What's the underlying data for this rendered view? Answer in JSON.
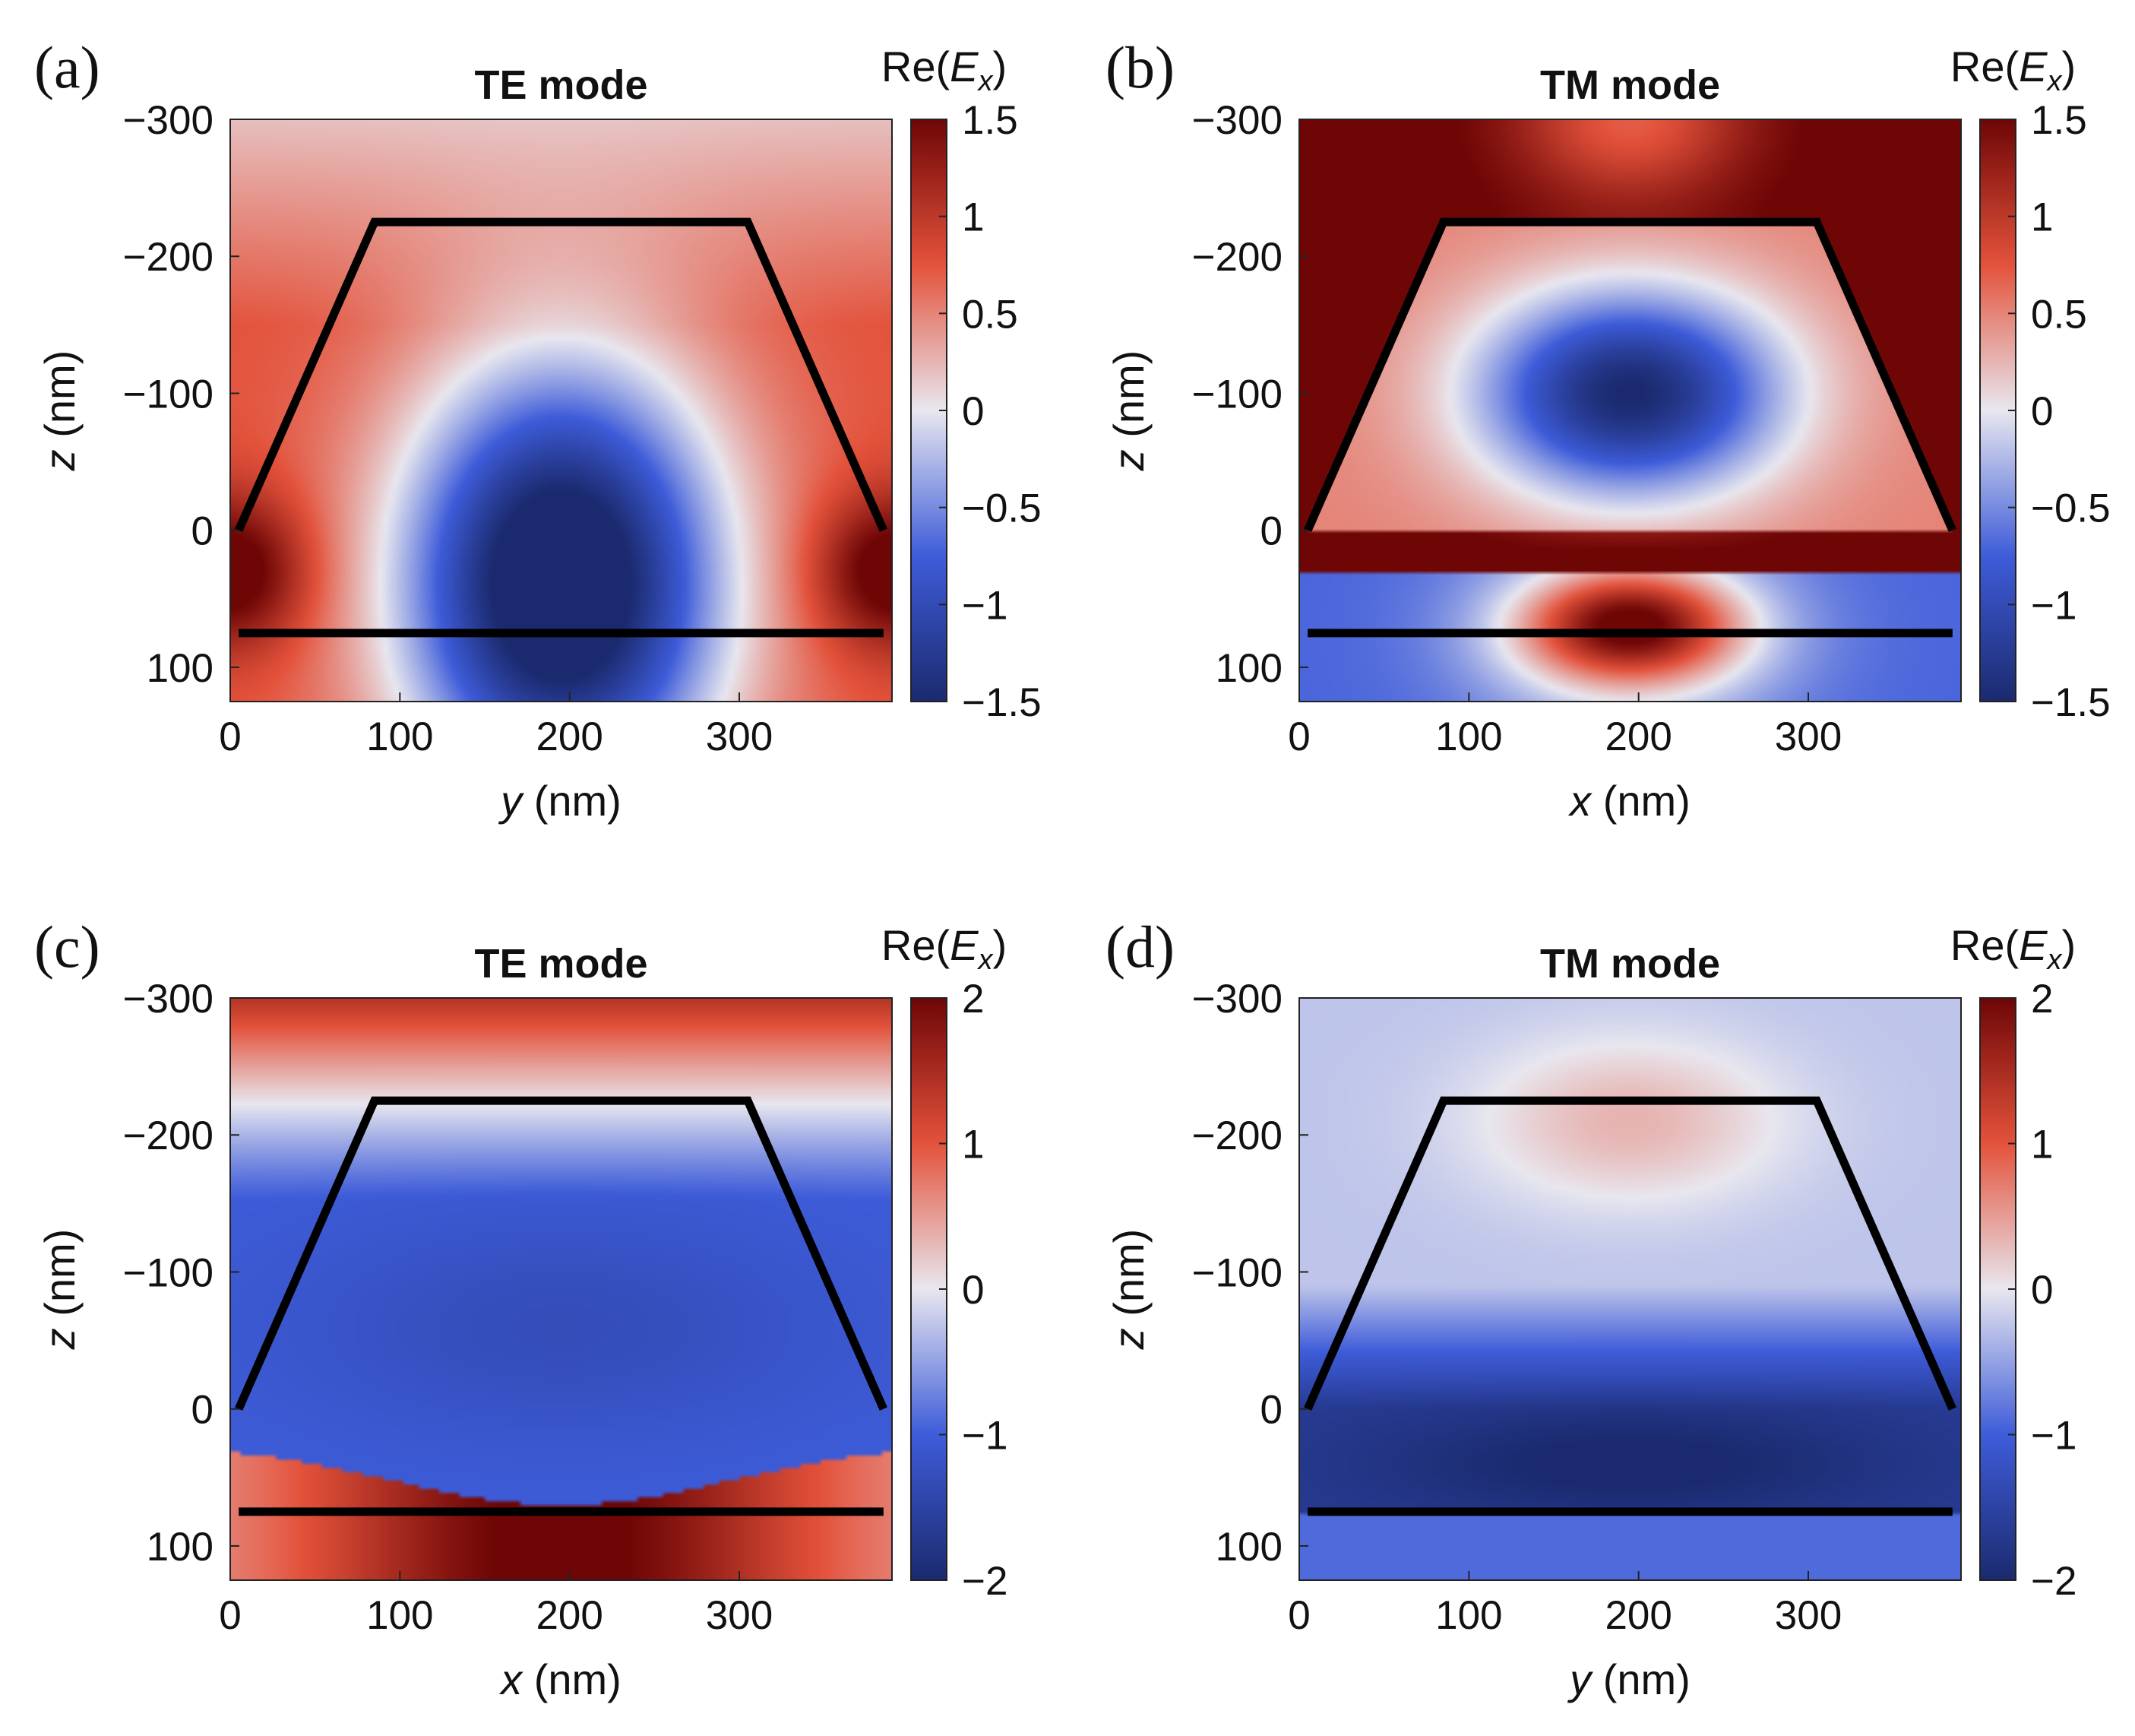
{
  "colormap": {
    "negative_end": "#1b2a6e",
    "mid_blue": "#3e5cd9",
    "center": "#e8e7ef",
    "mid_red": "#e3523b",
    "positive_end": "#6e0606"
  },
  "waveguide_outline_color": "#000000",
  "chart_data": [
    {
      "type": "heatmap",
      "panel": "(a)",
      "title": "TE mode",
      "colorbar_label": [
        "Re(",
        "E",
        "x",
        ")"
      ],
      "colorbar_ticks": [
        1.5,
        1,
        0.5,
        0,
        -0.5,
        -1,
        -1.5
      ],
      "colorbar_tick_labels": [
        "1.5",
        "1",
        "0.5",
        "0",
        "−0.5",
        "−1",
        "−1.5"
      ],
      "clim": [
        -1.5,
        1.5
      ],
      "xlabel": [
        "y",
        " (nm)"
      ],
      "ylabel": [
        "z",
        " (nm)"
      ],
      "xlim": [
        0,
        390
      ],
      "ylim": [
        -300,
        125
      ],
      "xticks": [
        0,
        100,
        200,
        300
      ],
      "xtick_labels": [
        "0",
        "100",
        "200",
        "300"
      ],
      "yticks": [
        -300,
        -200,
        -100,
        0,
        100
      ],
      "ytick_labels": [
        "−300",
        "−200",
        "−100",
        "0",
        "100"
      ],
      "waveguide_trapezoid": [
        [
          5,
          0
        ],
        [
          85,
          -225
        ],
        [
          305,
          -225
        ],
        [
          385,
          0
        ]
      ],
      "substrate_line_z": 75,
      "field_model": "te_lower"
    },
    {
      "type": "heatmap",
      "panel": "(b)",
      "title": "TM mode",
      "colorbar_label": [
        "Re(",
        "E",
        "x",
        ")"
      ],
      "colorbar_ticks": [
        1.5,
        1,
        0.5,
        0,
        -0.5,
        -1,
        -1.5
      ],
      "colorbar_tick_labels": [
        "1.5",
        "1",
        "0.5",
        "0",
        "−0.5",
        "−1",
        "−1.5"
      ],
      "clim": [
        -1.5,
        1.5
      ],
      "xlabel": [
        "x",
        " (nm)"
      ],
      "ylabel": [
        "z",
        " (nm)"
      ],
      "xlim": [
        0,
        390
      ],
      "ylim": [
        -300,
        125
      ],
      "xticks": [
        0,
        100,
        200,
        300
      ],
      "xtick_labels": [
        "0",
        "100",
        "200",
        "300"
      ],
      "yticks": [
        -300,
        -200,
        -100,
        0,
        100
      ],
      "ytick_labels": [
        "−300",
        "−200",
        "−100",
        "0",
        "100"
      ],
      "waveguide_trapezoid": [
        [
          5,
          0
        ],
        [
          85,
          -225
        ],
        [
          305,
          -225
        ],
        [
          385,
          0
        ]
      ],
      "substrate_line_z": 75,
      "field_model": "tm_upper"
    },
    {
      "type": "heatmap",
      "panel": "(c)",
      "title": "TE mode",
      "colorbar_label": [
        "Re(",
        "E",
        "x",
        ")"
      ],
      "colorbar_ticks": [
        2,
        1,
        0,
        -1,
        -2
      ],
      "colorbar_tick_labels": [
        "2",
        "1",
        "0",
        "−1",
        "−2"
      ],
      "clim": [
        -2,
        2
      ],
      "xlabel": [
        "x",
        " (nm)"
      ],
      "ylabel": [
        "z",
        " (nm)"
      ],
      "xlim": [
        0,
        390
      ],
      "ylim": [
        -300,
        125
      ],
      "xticks": [
        0,
        100,
        200,
        300
      ],
      "xtick_labels": [
        "0",
        "100",
        "200",
        "300"
      ],
      "yticks": [
        -300,
        -200,
        -100,
        0,
        100
      ],
      "ytick_labels": [
        "−300",
        "−200",
        "−100",
        "0",
        "100"
      ],
      "waveguide_trapezoid": [
        [
          5,
          0
        ],
        [
          85,
          -225
        ],
        [
          305,
          -225
        ],
        [
          385,
          0
        ]
      ],
      "substrate_line_z": 75,
      "field_model": "te_band"
    },
    {
      "type": "heatmap",
      "panel": "(d)",
      "title": "TM mode",
      "colorbar_label": [
        "Re(",
        "E",
        "x",
        ")"
      ],
      "colorbar_ticks": [
        2,
        1,
        0,
        -1,
        -2
      ],
      "colorbar_tick_labels": [
        "2",
        "1",
        "0",
        "−1",
        "−2"
      ],
      "clim": [
        -2,
        2
      ],
      "xlabel": [
        "y",
        " (nm)"
      ],
      "ylabel": [
        "z",
        " (nm)"
      ],
      "xlim": [
        0,
        390
      ],
      "ylim": [
        -300,
        125
      ],
      "xticks": [
        0,
        100,
        200,
        300
      ],
      "xtick_labels": [
        "0",
        "100",
        "200",
        "300"
      ],
      "yticks": [
        -300,
        -200,
        -100,
        0,
        100
      ],
      "ytick_labels": [
        "−300",
        "−200",
        "−100",
        "0",
        "100"
      ],
      "waveguide_trapezoid": [
        [
          5,
          0
        ],
        [
          85,
          -225
        ],
        [
          305,
          -225
        ],
        [
          385,
          0
        ]
      ],
      "substrate_line_z": 75,
      "field_model": "tm_lower"
    }
  ]
}
